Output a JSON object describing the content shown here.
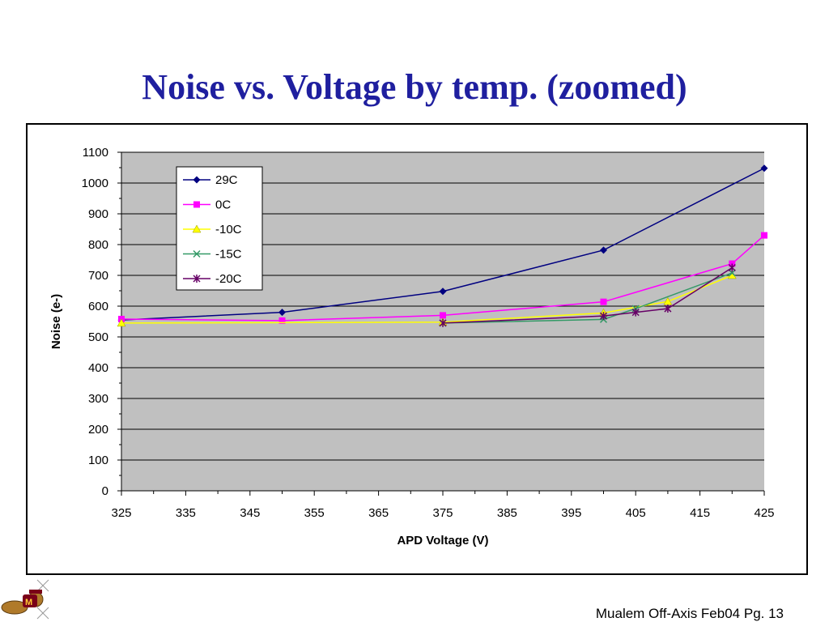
{
  "slide": {
    "title": "Noise vs. Voltage by temp. (zoomed)",
    "footer": "Mualem Off-Axis Feb04 Pg. 13"
  },
  "logo": {
    "icon": "gopher-mascot-icon"
  },
  "chart_data": {
    "type": "line",
    "title": "",
    "xlabel": "APD Voltage (V)",
    "ylabel": "Noise (e-)",
    "xlim": [
      325,
      425
    ],
    "ylim": [
      0,
      1100
    ],
    "xticks": [
      325,
      335,
      345,
      355,
      365,
      375,
      385,
      395,
      405,
      415,
      425
    ],
    "yticks": [
      0,
      100,
      200,
      300,
      400,
      500,
      600,
      700,
      800,
      900,
      1000,
      1100
    ],
    "grid": true,
    "plot_background": "#c0c0c0",
    "legend_position": "top-left",
    "series": [
      {
        "name": "29C",
        "color": "#000080",
        "marker": "diamond",
        "x": [
          325,
          350,
          375,
          400,
          425
        ],
        "y": [
          555,
          580,
          648,
          782,
          1048
        ]
      },
      {
        "name": "0C",
        "color": "#ff00ff",
        "marker": "square",
        "x": [
          325,
          350,
          375,
          400,
          420,
          425
        ],
        "y": [
          558,
          553,
          570,
          614,
          738,
          830
        ]
      },
      {
        "name": "-10C",
        "color": "#ffff00",
        "marker": "triangle",
        "x": [
          325,
          375,
          400,
          410,
          420
        ],
        "y": [
          545,
          548,
          578,
          615,
          700
        ]
      },
      {
        "name": "-15C",
        "color": "#339966",
        "marker": "x",
        "x": [
          375,
          400,
          405,
          420
        ],
        "y": [
          545,
          557,
          592,
          708
        ]
      },
      {
        "name": "-20C",
        "color": "#660066",
        "marker": "star",
        "x": [
          375,
          400,
          405,
          410,
          420
        ],
        "y": [
          545,
          568,
          580,
          592,
          725
        ]
      }
    ]
  }
}
